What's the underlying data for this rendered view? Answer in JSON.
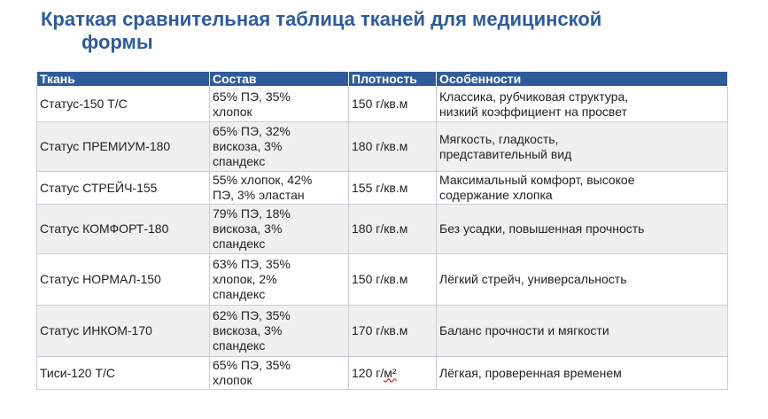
{
  "title": {
    "line1": "Краткая сравнительная таблица тканей для медицинской",
    "line2": "формы"
  },
  "table": {
    "headers": [
      "Ткань",
      "Состав",
      "Плотность",
      "Особенности"
    ],
    "rows": [
      {
        "fabric": "Статус-150 Т/С",
        "composition": [
          "65% ПЭ, 35%",
          "хлопок"
        ],
        "density": "150 г/кв.м",
        "features": [
          "Классика, рубчиковая структура,",
          "низкий коэффициент на просвет"
        ]
      },
      {
        "fabric": "Статус ПРЕМИУМ-180",
        "composition": [
          "65% ПЭ, 32%",
          "вискоза, 3%",
          "спандекс"
        ],
        "density": "180 г/кв.м",
        "features": [
          "Мягкость, гладкость,",
          "представительный вид"
        ]
      },
      {
        "fabric": "Статус СТРЕЙЧ-155",
        "composition": [
          "55% хлопок, 42%",
          "ПЭ, 3% эластан"
        ],
        "density": "155 г/кв.м",
        "features": [
          "Максимальный комфорт, высокое",
          "содержание хлопка"
        ]
      },
      {
        "fabric": "Статус КОМФОРТ-180",
        "composition": [
          "79% ПЭ, 18%",
          "вискоза, 3%",
          "спандекс"
        ],
        "density": "180 г/кв.м",
        "features": [
          "Без усадки, повышенная прочность"
        ]
      },
      {
        "fabric": "Статус НОРМАЛ-150",
        "composition": [
          "63% ПЭ, 35%",
          "хлопок, 2%",
          "спандекс"
        ],
        "density": "150 г/кв.м",
        "features": [
          "Лёгкий стрейч, универсальность"
        ]
      },
      {
        "fabric": "Статус ИНКОМ-170",
        "composition": [
          "62% ПЭ, 35%",
          "вискоза, 3%",
          "спандекс"
        ],
        "density": "170 г/кв.м",
        "features": [
          "Баланс прочности и мягкости"
        ]
      },
      {
        "fabric": "Тиси-120 Т/С",
        "composition": [
          "65% ПЭ, 35%",
          "хлопок"
        ],
        "density_prefix": "120 г/",
        "density_unit": "м²",
        "features": [
          "Лёгкая, проверенная временем"
        ]
      }
    ]
  }
}
